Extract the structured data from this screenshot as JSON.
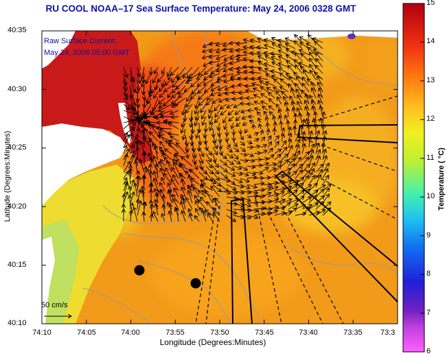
{
  "title": "RU COOL  NOAA–17  Sea Surface Temperature:  May 24, 2006 0328 GMT",
  "legend": {
    "line1": "Raw Surface Current:",
    "line2": "May 24, 2006 05:00 GMT"
  },
  "scale_arrow": {
    "label": "50 cm/s",
    "speed_cm_s": 50
  },
  "map": {
    "x_axis_title": "Longitude (Degrees:Minutes)",
    "y_axis_title": "Latitude (Degrees:Minutes)",
    "x_ticks": [
      "74:10",
      "74:05",
      "74:00",
      "73:55",
      "73:50",
      "73:45",
      "73:40",
      "73:35",
      "73:3"
    ],
    "y_ticks": [
      "40:35",
      "40:30",
      "40:25",
      "40:20",
      "40:15",
      "40:10"
    ],
    "lon_range": [
      "74:10 W",
      "73:30 W"
    ],
    "lat_range": [
      "40:10 N",
      "40:35 N"
    ]
  },
  "colorbar": {
    "title": "Temperature ( °C)",
    "ticks": [
      "15",
      "14",
      "13",
      "12",
      "11",
      "10",
      "9",
      "8",
      "7",
      "6"
    ],
    "range": [
      6,
      15
    ],
    "colors": [
      "#ff60ff",
      "#9020c0",
      "#2020d0",
      "#1070f0",
      "#20c0f0",
      "#40f0b0",
      "#c0f030",
      "#f0f020",
      "#ffc020",
      "#ff8010",
      "#f03010",
      "#b00010"
    ]
  },
  "colors": {
    "title": "#1010a8",
    "land": "#ffffff",
    "sst_warm_water": "#f29a1a",
    "sst_harbor": "#d81a1a",
    "sst_nearshore": "#e8d42a",
    "contour": "#9a9a9a",
    "vectors": "#000000"
  }
}
